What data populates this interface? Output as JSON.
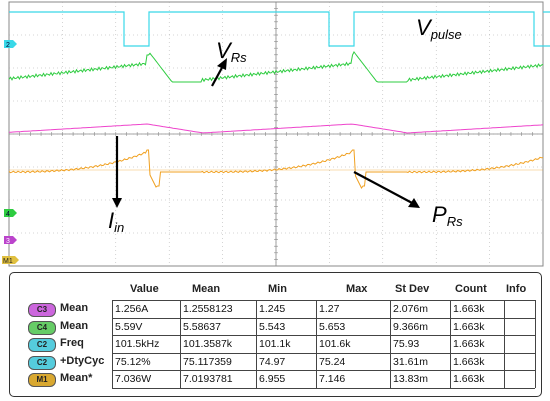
{
  "colors": {
    "grid": "#888888",
    "cyan": "#39d8e8",
    "green": "#2ecc40",
    "magenta": "#ee44cc",
    "orange": "#f0a020",
    "border": "#333333"
  },
  "labels": {
    "v_pulse_main": "V",
    "v_pulse_sub": "pulse",
    "v_rs_main": "V",
    "v_rs_sub": "Rs",
    "i_in_main": "I",
    "i_in_sub": "in",
    "p_rs_main": "P",
    "p_rs_sub": "Rs"
  },
  "markers": [
    "2",
    "4",
    "3",
    "M1"
  ],
  "table": {
    "headers": [
      "Value",
      "Mean",
      "Min",
      "Max",
      "St Dev",
      "Count",
      "Info"
    ],
    "rows": [
      {
        "channel": "C3",
        "label": "Mean",
        "color": "#cc66dd",
        "cells": [
          "1.256A",
          "1.2558123",
          "1.245",
          "1.27",
          "2.076m",
          "1.663k",
          ""
        ]
      },
      {
        "channel": "C4",
        "label": "Mean",
        "color": "#66cc66",
        "cells": [
          "5.59V",
          "5.58637",
          "5.543",
          "5.653",
          "9.366m",
          "1.663k",
          ""
        ]
      },
      {
        "channel": "C2",
        "label": "Freq",
        "color": "#55ccdd",
        "cells": [
          "101.5kHz",
          "101.3587k",
          "101.1k",
          "101.6k",
          "75.93",
          "1.663k",
          ""
        ]
      },
      {
        "channel": "C2",
        "label": "+DtyCyc",
        "color": "#55ccdd",
        "cells": [
          "75.12%",
          "75.117359",
          "74.97",
          "75.24",
          "31.61m",
          "1.663k",
          ""
        ]
      },
      {
        "channel": "M1",
        "label": "Mean*",
        "color": "#d9a830",
        "cells": [
          "7.036W",
          "7.0193781",
          "6.955",
          "7.146",
          "13.83m",
          "1.663k",
          ""
        ]
      }
    ]
  }
}
